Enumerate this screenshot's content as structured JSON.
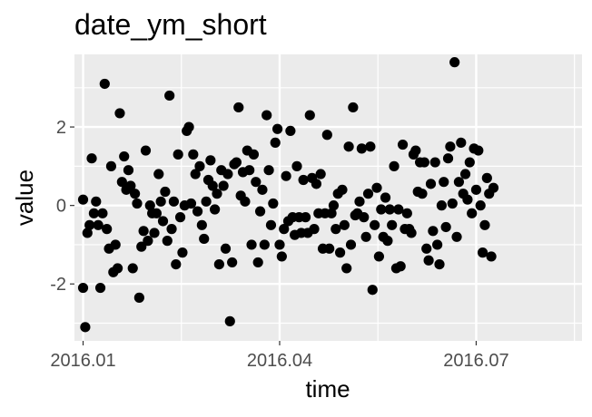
{
  "chart_data": {
    "type": "scatter",
    "title": "date_ym_short",
    "xlabel": "time",
    "ylabel": "value",
    "x_ticks": [
      "2016.01",
      "2016.04",
      "2016.07"
    ],
    "y_ticks": [
      "-2",
      "0",
      "2"
    ],
    "xlim": [
      "2015-12-28",
      "2016-08-19"
    ],
    "ylim": [
      -3.45,
      3.85
    ],
    "grid": true,
    "colors": {
      "panel": "#ebebeb",
      "grid": "#ffffff",
      "point": "#000000"
    },
    "points": [
      {
        "x": "2016-01-01",
        "y": -2.1
      },
      {
        "x": "2016-01-01",
        "y": 0.15
      },
      {
        "x": "2016-01-02",
        "y": -3.1
      },
      {
        "x": "2016-01-03",
        "y": -0.7
      },
      {
        "x": "2016-01-04",
        "y": -0.5
      },
      {
        "x": "2016-01-05",
        "y": 1.2
      },
      {
        "x": "2016-01-06",
        "y": -0.2
      },
      {
        "x": "2016-01-07",
        "y": 0.1
      },
      {
        "x": "2016-01-08",
        "y": -0.5
      },
      {
        "x": "2016-01-09",
        "y": -2.1
      },
      {
        "x": "2016-01-10",
        "y": -0.2
      },
      {
        "x": "2016-01-11",
        "y": 3.1
      },
      {
        "x": "2016-01-12",
        "y": -0.6
      },
      {
        "x": "2016-01-13",
        "y": -1.1
      },
      {
        "x": "2016-01-14",
        "y": 1.0
      },
      {
        "x": "2016-01-15",
        "y": -1.7
      },
      {
        "x": "2016-01-16",
        "y": -1.0
      },
      {
        "x": "2016-01-17",
        "y": -1.6
      },
      {
        "x": "2016-01-18",
        "y": 2.35
      },
      {
        "x": "2016-01-19",
        "y": 0.6
      },
      {
        "x": "2016-01-20",
        "y": 1.25
      },
      {
        "x": "2016-01-21",
        "y": 0.4
      },
      {
        "x": "2016-01-22",
        "y": 0.9
      },
      {
        "x": "2016-01-23",
        "y": 0.5
      },
      {
        "x": "2016-01-24",
        "y": -1.6
      },
      {
        "x": "2016-01-25",
        "y": 0.3
      },
      {
        "x": "2016-01-26",
        "y": 0.05
      },
      {
        "x": "2016-01-27",
        "y": -2.35
      },
      {
        "x": "2016-01-28",
        "y": -1.05
      },
      {
        "x": "2016-01-29",
        "y": -0.65
      },
      {
        "x": "2016-01-30",
        "y": 1.4
      },
      {
        "x": "2016-01-31",
        "y": -0.9
      },
      {
        "x": "2016-02-01",
        "y": 0.0
      },
      {
        "x": "2016-02-02",
        "y": -0.2
      },
      {
        "x": "2016-02-03",
        "y": -0.7
      },
      {
        "x": "2016-02-04",
        "y": -0.2
      },
      {
        "x": "2016-02-05",
        "y": 0.8
      },
      {
        "x": "2016-02-06",
        "y": 0.1
      },
      {
        "x": "2016-02-07",
        "y": -0.4
      },
      {
        "x": "2016-02-08",
        "y": 0.35
      },
      {
        "x": "2016-02-09",
        "y": -0.9
      },
      {
        "x": "2016-02-10",
        "y": 2.8
      },
      {
        "x": "2016-02-11",
        "y": -0.6
      },
      {
        "x": "2016-02-12",
        "y": 0.1
      },
      {
        "x": "2016-02-13",
        "y": -1.5
      },
      {
        "x": "2016-02-14",
        "y": 1.3
      },
      {
        "x": "2016-02-15",
        "y": -0.3
      },
      {
        "x": "2016-02-16",
        "y": -1.2
      },
      {
        "x": "2016-02-17",
        "y": 0.0
      },
      {
        "x": "2016-02-18",
        "y": 1.9
      },
      {
        "x": "2016-02-19",
        "y": 2.0
      },
      {
        "x": "2016-02-20",
        "y": 0.05
      },
      {
        "x": "2016-02-21",
        "y": 1.3
      },
      {
        "x": "2016-02-22",
        "y": 0.8
      },
      {
        "x": "2016-02-23",
        "y": -0.15
      },
      {
        "x": "2016-02-24",
        "y": 1.0
      },
      {
        "x": "2016-02-25",
        "y": -0.5
      },
      {
        "x": "2016-02-26",
        "y": -0.85
      },
      {
        "x": "2016-02-27",
        "y": 0.1
      },
      {
        "x": "2016-02-28",
        "y": 0.65
      },
      {
        "x": "2016-02-29",
        "y": 1.15
      },
      {
        "x": "2016-03-01",
        "y": 0.5
      },
      {
        "x": "2016-03-02",
        "y": -0.1
      },
      {
        "x": "2016-03-03",
        "y": 0.3
      },
      {
        "x": "2016-03-04",
        "y": -1.5
      },
      {
        "x": "2016-03-05",
        "y": 0.9
      },
      {
        "x": "2016-03-06",
        "y": 0.5
      },
      {
        "x": "2016-03-07",
        "y": -1.1
      },
      {
        "x": "2016-03-08",
        "y": 0.8
      },
      {
        "x": "2016-03-09",
        "y": -2.95
      },
      {
        "x": "2016-03-10",
        "y": -1.45
      },
      {
        "x": "2016-03-11",
        "y": 1.05
      },
      {
        "x": "2016-03-12",
        "y": 1.1
      },
      {
        "x": "2016-03-13",
        "y": 2.5
      },
      {
        "x": "2016-03-14",
        "y": 0.25
      },
      {
        "x": "2016-03-15",
        "y": 0.85
      },
      {
        "x": "2016-03-16",
        "y": 0.1
      },
      {
        "x": "2016-03-17",
        "y": 1.4
      },
      {
        "x": "2016-03-18",
        "y": 0.9
      },
      {
        "x": "2016-03-19",
        "y": -1.0
      },
      {
        "x": "2016-03-20",
        "y": 1.3
      },
      {
        "x": "2016-03-21",
        "y": 0.6
      },
      {
        "x": "2016-03-22",
        "y": -1.45
      },
      {
        "x": "2016-03-23",
        "y": -0.15
      },
      {
        "x": "2016-03-24",
        "y": 0.4
      },
      {
        "x": "2016-03-25",
        "y": -1.0
      },
      {
        "x": "2016-03-26",
        "y": 2.3
      },
      {
        "x": "2016-03-27",
        "y": 0.9
      },
      {
        "x": "2016-03-28",
        "y": -0.5
      },
      {
        "x": "2016-03-29",
        "y": 0.05
      },
      {
        "x": "2016-03-30",
        "y": 1.6
      },
      {
        "x": "2016-03-31",
        "y": 1.95
      },
      {
        "x": "2016-04-01",
        "y": -1.0
      },
      {
        "x": "2016-04-02",
        "y": -1.3
      },
      {
        "x": "2016-04-03",
        "y": -0.6
      },
      {
        "x": "2016-04-04",
        "y": 0.75
      },
      {
        "x": "2016-04-05",
        "y": -0.4
      },
      {
        "x": "2016-04-06",
        "y": 1.9
      },
      {
        "x": "2016-04-07",
        "y": -0.3
      },
      {
        "x": "2016-04-08",
        "y": -0.75
      },
      {
        "x": "2016-04-09",
        "y": 1.0
      },
      {
        "x": "2016-04-10",
        "y": -0.3
      },
      {
        "x": "2016-04-11",
        "y": -0.7
      },
      {
        "x": "2016-04-12",
        "y": 0.65
      },
      {
        "x": "2016-04-13",
        "y": -0.3
      },
      {
        "x": "2016-04-14",
        "y": -0.7
      },
      {
        "x": "2016-04-15",
        "y": 2.3
      },
      {
        "x": "2016-04-16",
        "y": 0.7
      },
      {
        "x": "2016-04-17",
        "y": -0.6
      },
      {
        "x": "2016-04-18",
        "y": 0.55
      },
      {
        "x": "2016-04-19",
        "y": -0.2
      },
      {
        "x": "2016-04-20",
        "y": 0.8
      },
      {
        "x": "2016-04-21",
        "y": -1.1
      },
      {
        "x": "2016-04-22",
        "y": -0.2
      },
      {
        "x": "2016-04-23",
        "y": 1.8
      },
      {
        "x": "2016-04-24",
        "y": -1.1
      },
      {
        "x": "2016-04-25",
        "y": -0.2
      },
      {
        "x": "2016-04-26",
        "y": 0.0
      },
      {
        "x": "2016-04-27",
        "y": -0.6
      },
      {
        "x": "2016-04-28",
        "y": 0.3
      },
      {
        "x": "2016-04-29",
        "y": -1.2
      },
      {
        "x": "2016-04-30",
        "y": 0.4
      },
      {
        "x": "2016-05-01",
        "y": -0.5
      },
      {
        "x": "2016-05-02",
        "y": -1.6
      },
      {
        "x": "2016-05-03",
        "y": 1.5
      },
      {
        "x": "2016-05-04",
        "y": -1.0
      },
      {
        "x": "2016-05-05",
        "y": 2.5
      },
      {
        "x": "2016-05-06",
        "y": -0.25
      },
      {
        "x": "2016-05-07",
        "y": -0.2
      },
      {
        "x": "2016-05-08",
        "y": 0.1
      },
      {
        "x": "2016-05-09",
        "y": 1.45
      },
      {
        "x": "2016-05-10",
        "y": -0.3
      },
      {
        "x": "2016-05-11",
        "y": -0.8
      },
      {
        "x": "2016-05-12",
        "y": 0.3
      },
      {
        "x": "2016-05-13",
        "y": 1.5
      },
      {
        "x": "2016-05-14",
        "y": -2.15
      },
      {
        "x": "2016-05-15",
        "y": -0.5
      },
      {
        "x": "2016-05-16",
        "y": 0.45
      },
      {
        "x": "2016-05-17",
        "y": -1.3
      },
      {
        "x": "2016-05-18",
        "y": -0.1
      },
      {
        "x": "2016-05-19",
        "y": -0.8
      },
      {
        "x": "2016-05-20",
        "y": 0.2
      },
      {
        "x": "2016-05-21",
        "y": -0.9
      },
      {
        "x": "2016-05-22",
        "y": -0.1
      },
      {
        "x": "2016-05-23",
        "y": -0.5
      },
      {
        "x": "2016-05-24",
        "y": 1.0
      },
      {
        "x": "2016-05-25",
        "y": -1.6
      },
      {
        "x": "2016-05-26",
        "y": -0.1
      },
      {
        "x": "2016-05-27",
        "y": -1.55
      },
      {
        "x": "2016-05-28",
        "y": 1.55
      },
      {
        "x": "2016-05-29",
        "y": -0.6
      },
      {
        "x": "2016-05-30",
        "y": -0.2
      },
      {
        "x": "2016-05-31",
        "y": -0.6
      },
      {
        "x": "2016-06-01",
        "y": -0.7
      },
      {
        "x": "2016-06-02",
        "y": 1.3
      },
      {
        "x": "2016-06-03",
        "y": 1.4
      },
      {
        "x": "2016-06-04",
        "y": 0.35
      },
      {
        "x": "2016-06-05",
        "y": 1.1
      },
      {
        "x": "2016-06-06",
        "y": 0.3
      },
      {
        "x": "2016-06-07",
        "y": 1.1
      },
      {
        "x": "2016-06-08",
        "y": -1.1
      },
      {
        "x": "2016-06-09",
        "y": -1.4
      },
      {
        "x": "2016-06-10",
        "y": 0.55
      },
      {
        "x": "2016-06-11",
        "y": -0.65
      },
      {
        "x": "2016-06-12",
        "y": 1.1
      },
      {
        "x": "2016-06-13",
        "y": -1.0
      },
      {
        "x": "2016-06-14",
        "y": -1.5
      },
      {
        "x": "2016-06-15",
        "y": 0.0
      },
      {
        "x": "2016-06-16",
        "y": 0.6
      },
      {
        "x": "2016-06-17",
        "y": -0.55
      },
      {
        "x": "2016-06-18",
        "y": 1.2
      },
      {
        "x": "2016-06-19",
        "y": 1.5
      },
      {
        "x": "2016-06-20",
        "y": 0.05
      },
      {
        "x": "2016-06-21",
        "y": 3.65
      },
      {
        "x": "2016-06-22",
        "y": -0.8
      },
      {
        "x": "2016-06-23",
        "y": 0.6
      },
      {
        "x": "2016-06-24",
        "y": 1.6
      },
      {
        "x": "2016-06-25",
        "y": 0.3
      },
      {
        "x": "2016-06-26",
        "y": 0.8
      },
      {
        "x": "2016-06-27",
        "y": 0.15
      },
      {
        "x": "2016-06-28",
        "y": 1.1
      },
      {
        "x": "2016-06-29",
        "y": -0.2
      },
      {
        "x": "2016-06-30",
        "y": 1.45
      },
      {
        "x": "2016-07-01",
        "y": 0.4
      },
      {
        "x": "2016-07-02",
        "y": 1.4
      },
      {
        "x": "2016-07-03",
        "y": 0.0
      },
      {
        "x": "2016-07-04",
        "y": -1.2
      },
      {
        "x": "2016-07-05",
        "y": -0.5
      },
      {
        "x": "2016-07-06",
        "y": 0.7
      },
      {
        "x": "2016-07-07",
        "y": 0.3
      },
      {
        "x": "2016-07-08",
        "y": -1.3
      },
      {
        "x": "2016-07-09",
        "y": 0.45
      }
    ]
  }
}
